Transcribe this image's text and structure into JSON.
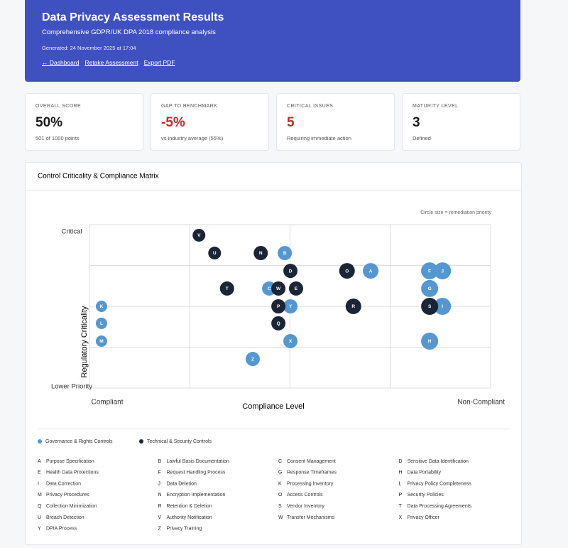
{
  "header": {
    "title": "Data Privacy Assessment Results",
    "subtitle": "Comprehensive GDPR/UK DPA 2018 compliance analysis",
    "generated": "Generated: 24 November 2025 at 17:04",
    "links": [
      "← Dashboard",
      "Retake Assessment",
      "Export PDF"
    ]
  },
  "stats": [
    {
      "label": "OVERALL SCORE",
      "value": "50%",
      "note": "501 of 1000 points"
    },
    {
      "label": "GAP TO BENCHMARK",
      "value": "-5%",
      "note": "vs industry average (55%)",
      "color": "#c62828"
    },
    {
      "label": "CRITICAL ISSUES",
      "value": "5",
      "note": "Requiring immediate action",
      "color": "#c62828"
    },
    {
      "label": "MATURITY LEVEL",
      "value": "3",
      "note": "Defined"
    }
  ],
  "chart_data": {
    "type": "bubble",
    "title": "Control Criticality & Compliance Matrix",
    "note": "Circle size = remediation priority",
    "xlabel": "Compliance Level",
    "ylabel": "Regulatory Criticality",
    "xlim": [
      0,
      100
    ],
    "ylim": [
      0,
      100
    ],
    "xticks": [
      {
        "value": 0,
        "label": "Compliant"
      },
      {
        "value": 100,
        "label": "Non-Compliant"
      }
    ],
    "yticks": [
      {
        "value": 95.7,
        "label": "Critical"
      },
      {
        "value": 0.9,
        "label": "Lower Priority"
      }
    ],
    "xgrid": [
      25,
      50,
      75
    ],
    "ygrid": [
      25,
      50,
      75
    ],
    "series": [
      {
        "name": "Governance & Rights Controls",
        "color": "#5597d0",
        "labels": [
          "B",
          "A",
          "F",
          "J",
          "G",
          "I",
          "H",
          "C",
          "Y",
          "X",
          "K",
          "L",
          "M",
          "Z"
        ],
        "x": [
          48.7,
          70.1,
          84.8,
          88.0,
          84.8,
          88.0,
          84.8,
          44.8,
          50.1,
          50.1,
          3.0,
          3.0,
          3.0,
          40.7
        ],
        "values": [
          82.6,
          71.7,
          71.7,
          71.7,
          60.9,
          50.0,
          28.7,
          60.9,
          50.0,
          28.7,
          50.0,
          39.6,
          28.7,
          17.8
        ],
        "sizes": [
          4,
          5,
          6,
          6,
          6,
          6,
          6,
          4,
          4,
          4,
          2,
          2,
          2,
          4
        ]
      },
      {
        "name": "Technical & Security Controls",
        "color": "#1b2536",
        "labels": [
          "V",
          "U",
          "N",
          "D",
          "O",
          "T",
          "W",
          "E",
          "P",
          "R",
          "S",
          "Q"
        ],
        "x": [
          27.3,
          31.2,
          42.7,
          50.1,
          64.2,
          34.3,
          47.1,
          51.5,
          47.1,
          65.8,
          84.8,
          47.1
        ],
        "values": [
          93.5,
          82.6,
          82.6,
          71.7,
          71.7,
          60.9,
          60.9,
          60.9,
          50.0,
          50.0,
          50.0,
          39.6
        ],
        "sizes": [
          3,
          3,
          4,
          4,
          5,
          4,
          4,
          4,
          4,
          5,
          6,
          4
        ]
      }
    ]
  },
  "key": [
    {
      "letter": "A",
      "name": "Purpose Specification"
    },
    {
      "letter": "B",
      "name": "Lawful Basis Documentation"
    },
    {
      "letter": "C",
      "name": "Consent Management"
    },
    {
      "letter": "D",
      "name": "Sensitive Data Identification"
    },
    {
      "letter": "E",
      "name": "Health Data Protections"
    },
    {
      "letter": "F",
      "name": "Request Handling Process"
    },
    {
      "letter": "G",
      "name": "Response Timeframes"
    },
    {
      "letter": "H",
      "name": "Data Portability"
    },
    {
      "letter": "I",
      "name": "Data Correction"
    },
    {
      "letter": "J",
      "name": "Data Deletion"
    },
    {
      "letter": "K",
      "name": "Processing Inventory"
    },
    {
      "letter": "L",
      "name": "Privacy Policy Completeness"
    },
    {
      "letter": "M",
      "name": "Privacy Procedures"
    },
    {
      "letter": "N",
      "name": "Encryption Implementation"
    },
    {
      "letter": "O",
      "name": "Access Controls"
    },
    {
      "letter": "P",
      "name": "Security Policies"
    },
    {
      "letter": "Q",
      "name": "Collection Minimization"
    },
    {
      "letter": "R",
      "name": "Retention & Deletion"
    },
    {
      "letter": "S",
      "name": "Vendor Inventory"
    },
    {
      "letter": "T",
      "name": "Data Processing Agreements"
    },
    {
      "letter": "U",
      "name": "Breach Detection"
    },
    {
      "letter": "V",
      "name": "Authority Notification"
    },
    {
      "letter": "W",
      "name": "Transfer Mechanisms"
    },
    {
      "letter": "X",
      "name": "Privacy Officer"
    },
    {
      "letter": "Y",
      "name": "DPIA Process"
    },
    {
      "letter": "Z",
      "name": "Privacy Training"
    }
  ]
}
